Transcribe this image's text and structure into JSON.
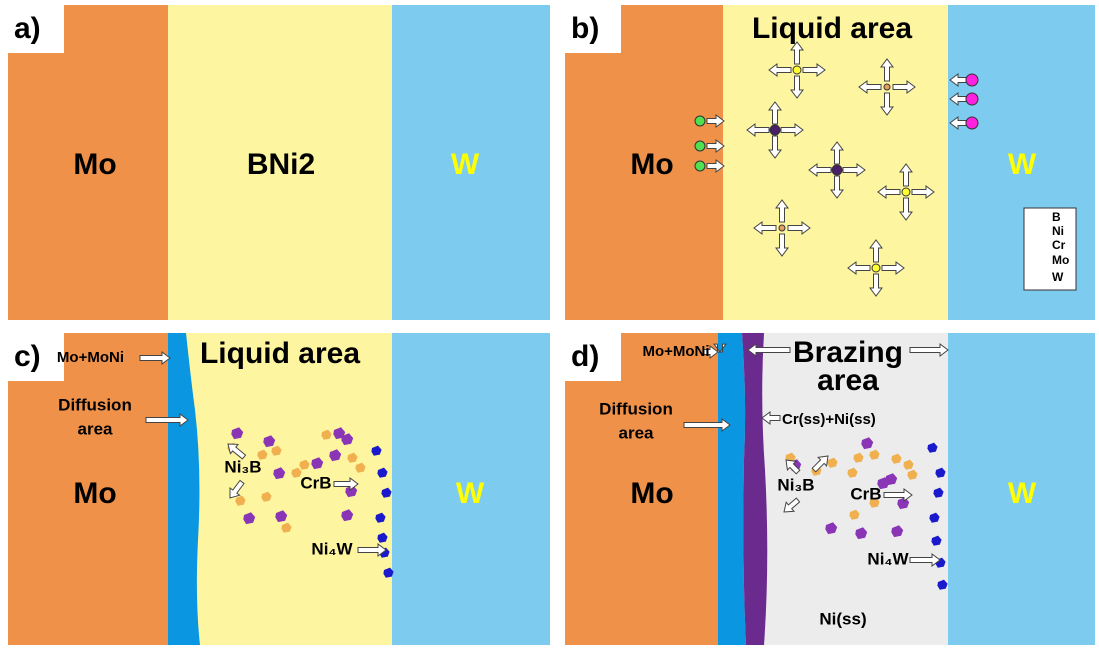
{
  "panels": [
    {
      "label": "a)",
      "regions": [
        "Mo",
        "BNi2",
        "W"
      ]
    },
    {
      "label": "b)",
      "title": "Liquid area",
      "regions": [
        "Mo",
        "W"
      ],
      "legend": [
        "B",
        "Ni",
        "Cr",
        "Mo",
        "W"
      ]
    },
    {
      "label": "c)",
      "title": "Liquid area",
      "regions": [
        "Mo",
        "W"
      ],
      "interface": "Mo+MoNi",
      "diffusion": [
        "Diffusion",
        "area"
      ],
      "phases": [
        "Ni₃B",
        "CrB",
        "Ni₄W"
      ]
    },
    {
      "label": "d)",
      "title": [
        "Brazing",
        "area"
      ],
      "regions": [
        "Mo",
        "W"
      ],
      "interface": "Mo+MoNi",
      "diffusion": [
        "Diffusion",
        "area"
      ],
      "solid_solution": "Cr(ss)+Ni(ss)",
      "phases": [
        "Ni₃B",
        "CrB",
        "Ni₄W"
      ],
      "matrix": "Ni(ss)"
    }
  ]
}
